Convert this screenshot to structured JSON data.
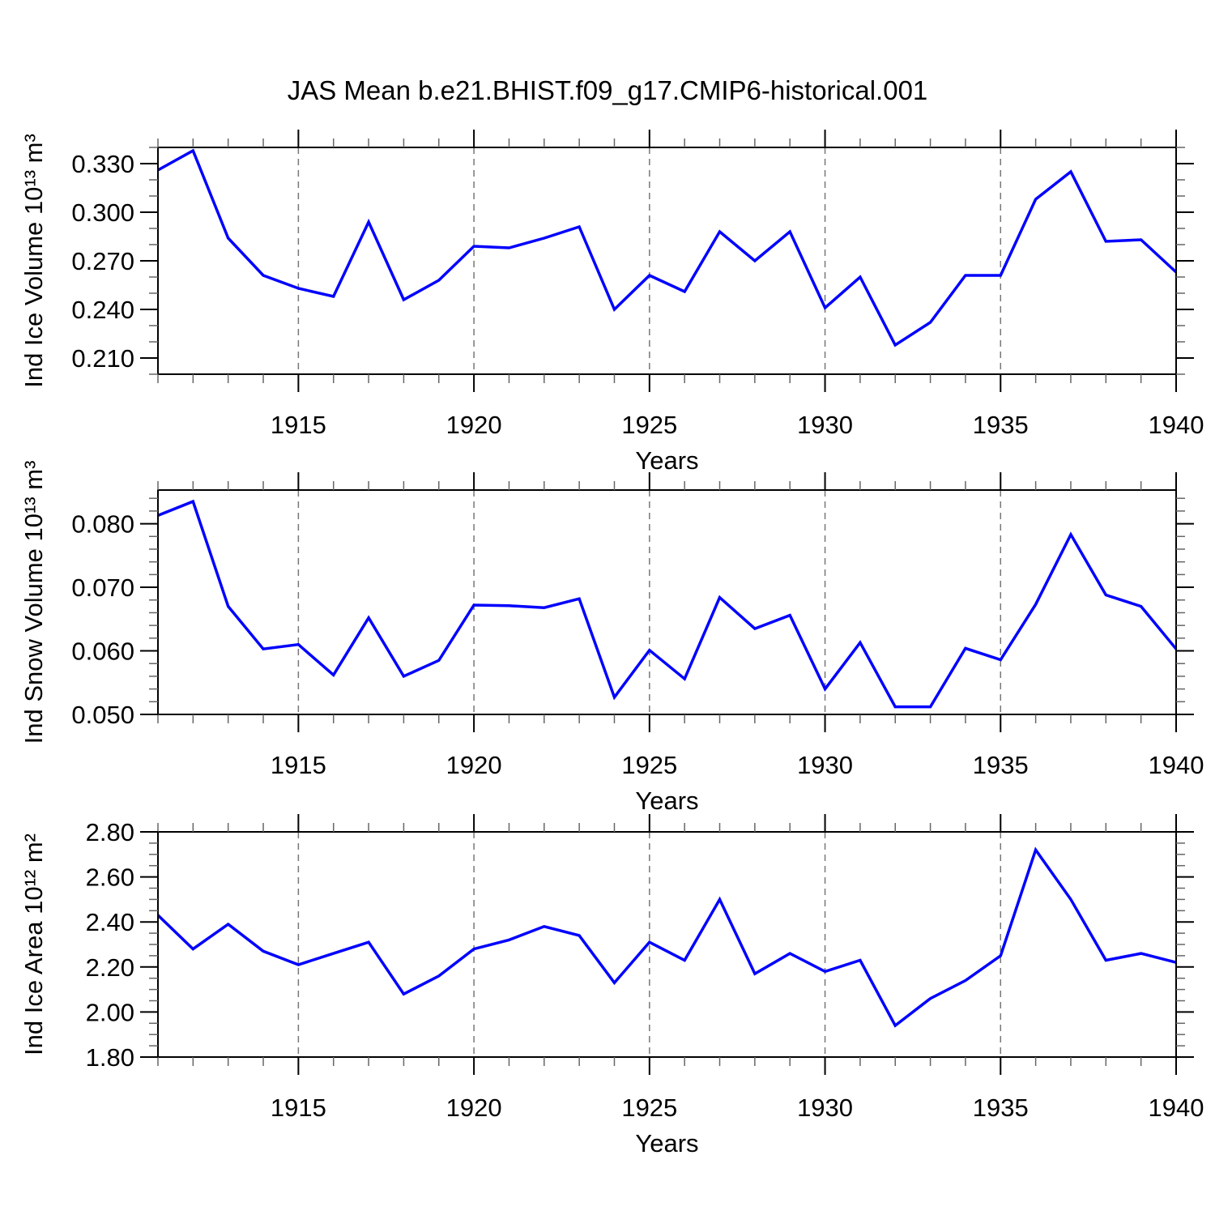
{
  "title": "JAS Mean b.e21.BHIST.f09_g17.CMIP6-historical.001",
  "years": [
    1911,
    1912,
    1913,
    1914,
    1915,
    1916,
    1917,
    1918,
    1919,
    1920,
    1921,
    1922,
    1923,
    1924,
    1925,
    1926,
    1927,
    1928,
    1929,
    1930,
    1931,
    1932,
    1933,
    1934,
    1935,
    1936,
    1937,
    1938,
    1939,
    1940
  ],
  "x_axis": {
    "label": "Years",
    "min": 1911,
    "max": 1940,
    "major_ticks": [
      1915,
      1920,
      1925,
      1930,
      1935,
      1940
    ],
    "tick_labels": [
      "1915",
      "1920",
      "1925",
      "1930",
      "1935",
      "1940"
    ],
    "minor_step": 1,
    "gridline_years": [
      1915,
      1920,
      1925,
      1930,
      1935
    ]
  },
  "colors": {
    "line": "#0000ff",
    "frame": "#000000",
    "gridline": "#777777",
    "tick_major": "#000000",
    "tick_minor": "#666666",
    "text": "#000000",
    "background": "#ffffff"
  },
  "chart_data": [
    {
      "type": "line",
      "name": "ind-ice-volume",
      "ylabel": "Ind Ice Volume 10¹³ m³",
      "ylim": [
        0.2,
        0.34
      ],
      "ytick_values": [
        0.21,
        0.24,
        0.27,
        0.3,
        0.33
      ],
      "ytick_labels": [
        "0.210",
        "0.240",
        "0.270",
        "0.300",
        "0.330"
      ],
      "y_minor_step": 0.01,
      "grid": "x-dashed",
      "legend": "none",
      "xlabel": "Years",
      "values": [
        0.326,
        0.338,
        0.284,
        0.261,
        0.253,
        0.248,
        0.294,
        0.246,
        0.258,
        0.279,
        0.278,
        0.284,
        0.291,
        0.24,
        0.261,
        0.251,
        0.288,
        0.27,
        0.288,
        0.241,
        0.26,
        0.218,
        0.232,
        0.261,
        0.261,
        0.308,
        0.325,
        0.282,
        0.283,
        0.263
      ]
    },
    {
      "type": "line",
      "name": "ind-snow-volume",
      "ylabel": "Ind Snow Volume 10¹³ m³",
      "ylim": [
        0.05,
        0.0853
      ],
      "ytick_values": [
        0.05,
        0.06,
        0.07,
        0.08
      ],
      "ytick_labels": [
        "0.050",
        "0.060",
        "0.070",
        "0.080"
      ],
      "y_minor_step": 0.002,
      "grid": "x-dashed",
      "legend": "none",
      "xlabel": "Years",
      "values": [
        0.0813,
        0.0835,
        0.067,
        0.0603,
        0.061,
        0.0562,
        0.0652,
        0.056,
        0.0585,
        0.0672,
        0.0671,
        0.0668,
        0.0682,
        0.0527,
        0.0601,
        0.0556,
        0.0684,
        0.0635,
        0.0656,
        0.054,
        0.0613,
        0.0512,
        0.0512,
        0.0604,
        0.0586,
        0.0673,
        0.0783,
        0.0688,
        0.067,
        0.0603
      ]
    },
    {
      "type": "line",
      "name": "ind-ice-area",
      "ylabel": "Ind Ice Area 10¹² m²",
      "ylim": [
        1.8,
        2.8
      ],
      "ytick_values": [
        1.8,
        2.0,
        2.2,
        2.4,
        2.6,
        2.8
      ],
      "ytick_labels": [
        "1.80",
        "2.00",
        "2.20",
        "2.40",
        "2.60",
        "2.80"
      ],
      "y_minor_step": 0.05,
      "grid": "x-dashed",
      "legend": "none",
      "xlabel": "Years",
      "values": [
        2.43,
        2.28,
        2.39,
        2.27,
        2.21,
        2.26,
        2.31,
        2.08,
        2.16,
        2.28,
        2.32,
        2.38,
        2.34,
        2.13,
        2.31,
        2.23,
        2.5,
        2.17,
        2.26,
        2.18,
        2.23,
        1.94,
        2.06,
        2.14,
        2.25,
        2.72,
        2.5,
        2.23,
        2.26,
        2.22
      ]
    }
  ]
}
